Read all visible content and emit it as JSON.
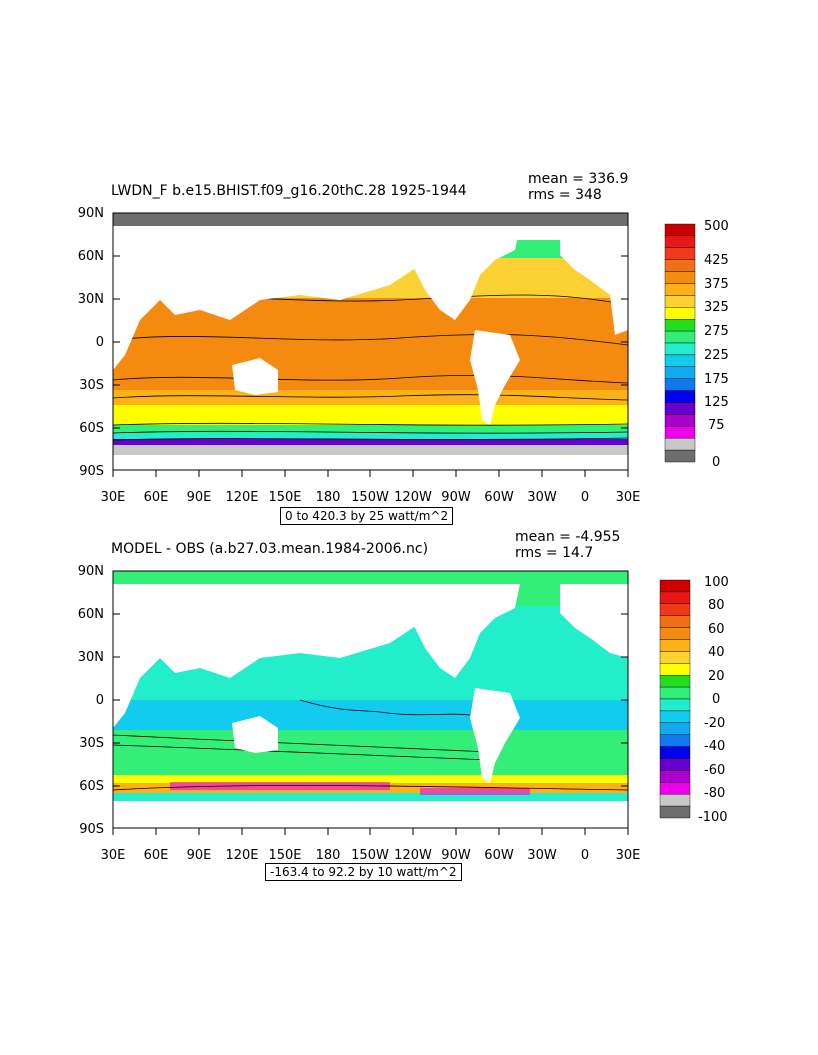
{
  "panels": [
    {
      "title": "LWDN_F b.e15.BHIST.f09_g16.20thC.28 1925-1944",
      "mean": "mean = 336.9",
      "rms": "rms = 348",
      "info": "0 to 420.3 by 25 watt/m^2",
      "colorbar_labels": [
        "500",
        "425",
        "375",
        "325",
        "275",
        "225",
        "175",
        "125",
        "75",
        "0"
      ],
      "colors": [
        "#cc0000",
        "#e81818",
        "#ee3a1a",
        "#f07018",
        "#f58a10",
        "#fbb117",
        "#fbd133",
        "#ffff00",
        "#22dd22",
        "#33ee77",
        "#22eecc",
        "#11ccee",
        "#11aaee",
        "#1177ee",
        "#0000ee",
        "#6600cc",
        "#aa00cc",
        "#ee00ee",
        "#c8c8c8",
        "#6e6e6e"
      ]
    },
    {
      "title": "MODEL - OBS (a.b27.03.mean.1984-2006.nc)",
      "mean": "mean = -4.955",
      "rms": "rms = 14.7",
      "info": "-163.4 to 92.2 by 10 watt/m^2",
      "colorbar_labels": [
        "100",
        "80",
        "60",
        "40",
        "20",
        "0",
        "-20",
        "-40",
        "-60",
        "-80",
        "-100"
      ],
      "colors": [
        "#cc0000",
        "#e81818",
        "#ee3a1a",
        "#f07018",
        "#f58a10",
        "#fbb117",
        "#fbd133",
        "#ffff00",
        "#22dd22",
        "#33ee77",
        "#22eecc",
        "#11ccee",
        "#11aaee",
        "#1177ee",
        "#0000ee",
        "#6600cc",
        "#aa00cc",
        "#ee00ee",
        "#c8c8c8",
        "#6e6e6e"
      ]
    }
  ],
  "lat_labels": [
    "90N",
    "60N",
    "30N",
    "0",
    "30S",
    "60S",
    "90S"
  ],
  "lon_labels": [
    "30E",
    "60E",
    "90E",
    "120E",
    "150E",
    "180",
    "150W",
    "120W",
    "90W",
    "60W",
    "30W",
    "0",
    "30E"
  ],
  "palette": {
    "land": "#ffffff",
    "ocean_warm": "#f58a10",
    "ocean_mid": "#fbd133",
    "ocean_cool": "#ffff00",
    "ice_dark": "#6e6e6e",
    "ice_light": "#c8c8c8",
    "diff_cyan": "#22eecc",
    "diff_lightblue": "#11ccee",
    "diff_green": "#33ee77",
    "diff_yellow": "#ffff00"
  }
}
